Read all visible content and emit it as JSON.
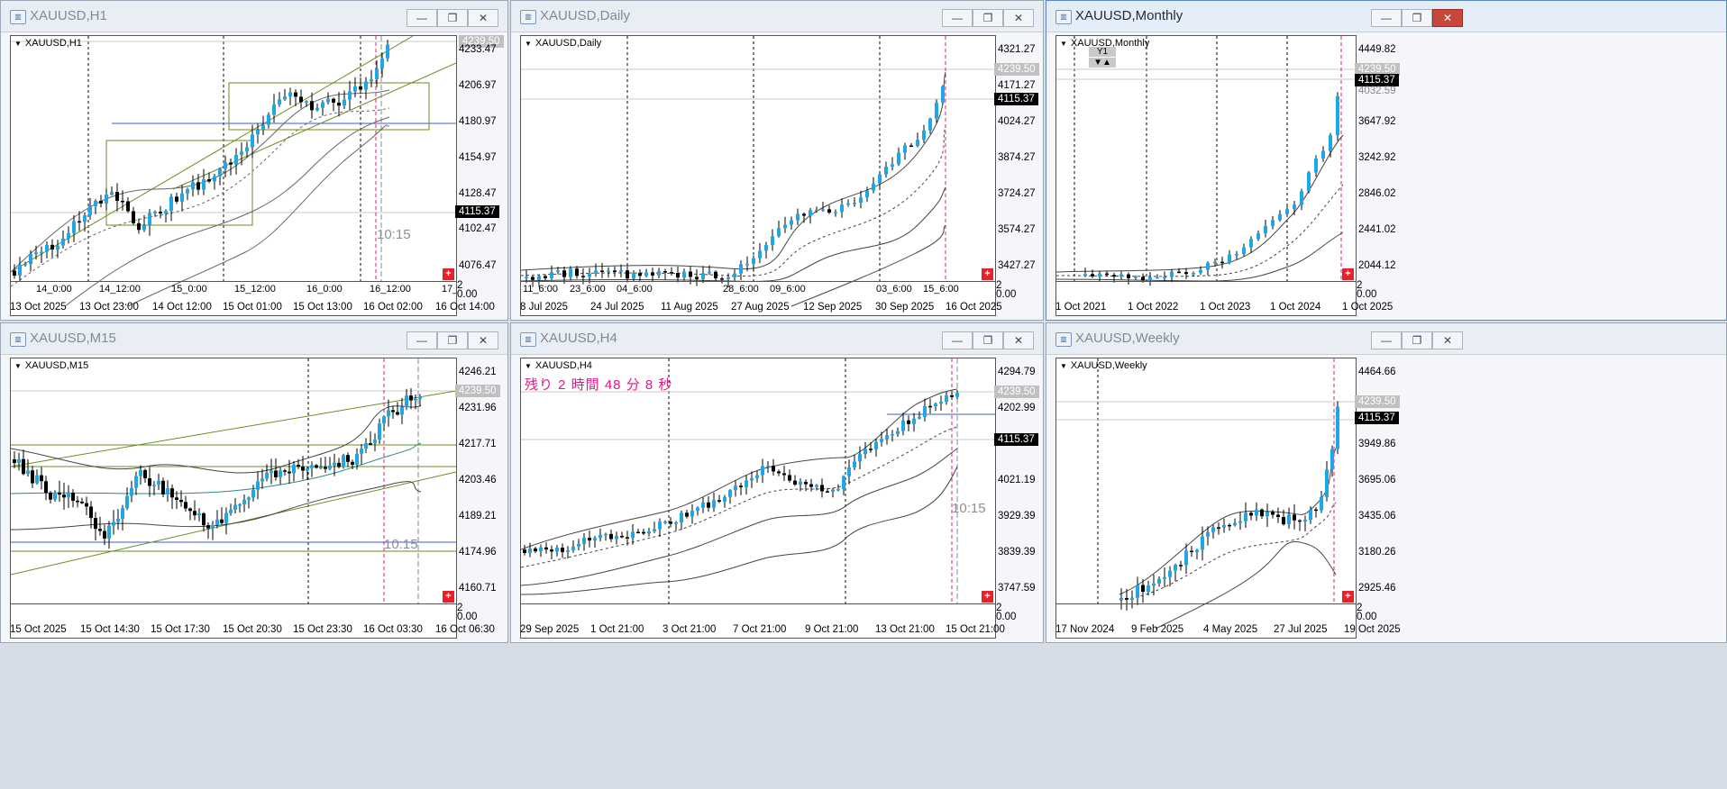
{
  "windows": {
    "h1": {
      "title": "XAUUSD,H1",
      "symbol": "XAUUSD,H1",
      "prices": [
        "4233.47",
        "4206.97",
        "4180.97",
        "4154.97",
        "4128.47",
        "4102.47",
        "4076.47"
      ],
      "bid": "4239.50",
      "ref": "4115.37",
      "dates": [
        "13 Oct 2025",
        "13 Oct 23:00",
        "14 Oct 12:00",
        "15 Oct 01:00",
        "15 Oct 13:00",
        "16 Oct 02:00",
        "16 Oct 14:00"
      ],
      "sub_labels": [
        "14_0:00",
        "14_12:00",
        "15_0:00",
        "15_12:00",
        "16_0:00",
        "16_12:00",
        "17_"
      ],
      "sub_scale": "2",
      "sub_zero": "0.00",
      "ghost": "10:15"
    },
    "daily": {
      "title": "XAUUSD,Daily",
      "symbol": "XAUUSD,Daily",
      "prices": [
        "4321.27",
        "4171.27",
        "4024.27",
        "3874.27",
        "3724.27",
        "3574.27",
        "3427.27"
      ],
      "bid": "4239.50",
      "ref": "4115.37",
      "dates": [
        "8 Jul 2025",
        "24 Jul 2025",
        "11 Aug 2025",
        "27 Aug 2025",
        "12 Sep 2025",
        "30 Sep 2025",
        "16 Oct 2025"
      ],
      "sub_labels": [
        "11_6:00",
        "23_6:00",
        "04_6:00",
        "28_6:00",
        "09_6:00",
        "03_6:00",
        "15_6:00"
      ],
      "sub_scale": "2",
      "sub_zero": "0.00"
    },
    "monthly": {
      "title": "XAUUSD,Monthly",
      "symbol": "XAUUSD,Monthly",
      "prices": [
        "4449.82",
        "4032.59",
        "3647.92",
        "3242.92",
        "2846.02",
        "2441.02",
        "2044.12"
      ],
      "bid": "4239.50",
      "ref": "4115.37",
      "dates": [
        "1 Oct 2021",
        "1 Oct 2022",
        "1 Oct 2023",
        "1 Oct 2024",
        "1 Oct 2025"
      ],
      "sub_scale": "2",
      "sub_zero": "0.00",
      "y1": "Y1"
    },
    "m15": {
      "title": "XAUUSD,M15",
      "symbol": "XAUUSD,M15",
      "prices": [
        "4246.21",
        "4231.96",
        "4217.71",
        "4203.46",
        "4189.21",
        "4174.96",
        "4160.71"
      ],
      "bid": "4239.50",
      "dates": [
        "15 Oct 2025",
        "15 Oct 14:30",
        "15 Oct 17:30",
        "15 Oct 20:30",
        "15 Oct 23:30",
        "16 Oct 03:30",
        "16 Oct 06:30"
      ],
      "sub_scale": "2",
      "sub_zero": "0.00",
      "ghost": "10:15"
    },
    "h4": {
      "title": "XAUUSD,H4",
      "symbol": "XAUUSD,H4",
      "countdown": "残り 2 時間 48 分 8 秒",
      "prices": [
        "4294.79",
        "4202.99",
        "4112.79",
        "4021.19",
        "3929.39",
        "3839.39",
        "3747.59"
      ],
      "bid": "4239.50",
      "ref": "4115.37",
      "dates": [
        "29 Sep 2025",
        "1 Oct 21:00",
        "3 Oct 21:00",
        "7 Oct 21:00",
        "9 Oct 21:00",
        "13 Oct 21:00",
        "15 Oct 21:00"
      ],
      "sub_scale": "2",
      "sub_zero": "0.00",
      "ghost": "10:15"
    },
    "weekly": {
      "title": "XAUUSD,Weekly",
      "symbol": "XAUUSD,Weekly",
      "prices": [
        "4464.66",
        "4209.81",
        "3949.86",
        "3695.06",
        "3435.06",
        "3180.26",
        "2925.46"
      ],
      "bid": "4239.50",
      "ref": "4115.37",
      "dates": [
        "17 Nov 2024",
        "9 Feb 2025",
        "4 May 2025",
        "27 Jul 2025",
        "19 Oct 2025"
      ],
      "sub_scale": "2",
      "sub_zero": "0.00"
    }
  },
  "buttons": {
    "minimize": "▭",
    "maximize": "❐",
    "close": "✕"
  }
}
